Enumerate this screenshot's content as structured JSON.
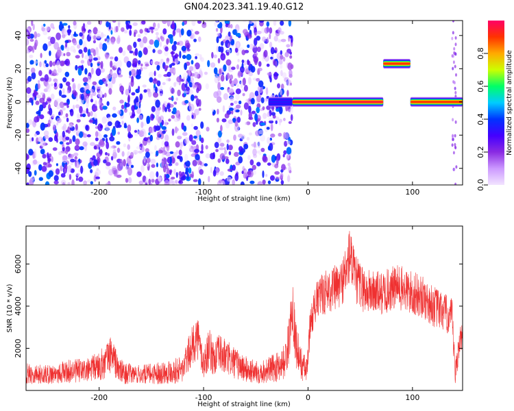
{
  "title": "GN04.2023.341.19.40.G12",
  "chart_data": [
    {
      "type": "heatmap",
      "xlabel": "Height of straight line (km)",
      "ylabel": "Frequency (Hz)",
      "xlim": [
        -270,
        148
      ],
      "ylim": [
        -50,
        49
      ],
      "xticks": [
        -200,
        -100,
        0,
        100
      ],
      "xtick_labels": [
        "-200",
        "-100",
        "0",
        "100"
      ],
      "yticks": [
        -40,
        -20,
        0,
        20,
        40
      ],
      "ytick_labels": [
        "-40",
        "-20",
        "0",
        "20",
        "40"
      ],
      "colorbar": {
        "label": "Normalized spectral amplitude",
        "range": [
          0,
          1
        ],
        "ticks": [
          0,
          0.2,
          0.4,
          0.6,
          0.8
        ],
        "tick_labels": [
          "0.0",
          "0.2",
          "0.4",
          "0.6",
          "0.8"
        ],
        "colors": [
          "#f2e4ff",
          "#cc99ff",
          "#8a2be2",
          "#4400ff",
          "#0033ff",
          "#00ccff",
          "#00ff66",
          "#ccff00",
          "#ffaa00",
          "#ff3300",
          "#ff0066"
        ]
      },
      "noise_region": {
        "x_range": [
          -270,
          -15
        ],
        "y_range": [
          -50,
          49
        ]
      },
      "bands": [
        {
          "x": [
            -38,
            -15
          ],
          "freq": 0,
          "level": 0.35
        },
        {
          "x": [
            -15,
            72
          ],
          "freq": 0,
          "level": 0.95
        },
        {
          "x": [
            72,
            98
          ],
          "freq": 23,
          "level": 0.9
        },
        {
          "x": [
            98,
            148
          ],
          "freq": 0,
          "level": 0.9
        }
      ]
    },
    {
      "type": "line",
      "xlabel": "Height of straight line (km)",
      "ylabel": "SNR (10 * v/v)",
      "xlim": [
        -270,
        148
      ],
      "ylim": [
        0,
        7800
      ],
      "xticks": [
        -200,
        -100,
        0,
        100
      ],
      "xtick_labels": [
        "-200",
        "-100",
        "0",
        "100"
      ],
      "yticks": [
        2000,
        4000,
        6000
      ],
      "ytick_labels": [
        "2000",
        "4000",
        "6000"
      ],
      "color": "#ef3030",
      "x": [
        -270,
        -250,
        -230,
        -210,
        -195,
        -188,
        -182,
        -175,
        -160,
        -140,
        -120,
        -112,
        -106,
        -100,
        -95,
        -90,
        -85,
        -80,
        -70,
        -60,
        -50,
        -40,
        -30,
        -22,
        -18,
        -15,
        -12,
        -8,
        -4,
        -1,
        2,
        6,
        10,
        20,
        30,
        37,
        40,
        45,
        55,
        70,
        85,
        100,
        110,
        120,
        130,
        138,
        141,
        145,
        148
      ],
      "values": [
        800,
        750,
        900,
        950,
        1300,
        1800,
        1000,
        800,
        750,
        850,
        1000,
        2000,
        2600,
        1200,
        2000,
        1500,
        1800,
        1600,
        1300,
        1000,
        850,
        950,
        1100,
        1400,
        2400,
        4300,
        2400,
        1400,
        1100,
        900,
        3200,
        3900,
        4400,
        4800,
        4900,
        5700,
        6500,
        5300,
        4700,
        4600,
        4900,
        4600,
        4400,
        4000,
        3700,
        3400,
        700,
        2400,
        2300
      ],
      "noise": [
        500,
        450,
        550,
        600,
        800,
        900,
        650,
        500,
        450,
        550,
        650,
        900,
        1100,
        800,
        1000,
        850,
        900,
        900,
        750,
        650,
        550,
        600,
        700,
        850,
        1100,
        1400,
        1200,
        900,
        700,
        600,
        800,
        900,
        1000,
        1100,
        1100,
        1300,
        1400,
        1200,
        1100,
        1050,
        1100,
        1100,
        1000,
        1000,
        950,
        950,
        600,
        800,
        800
      ]
    }
  ]
}
